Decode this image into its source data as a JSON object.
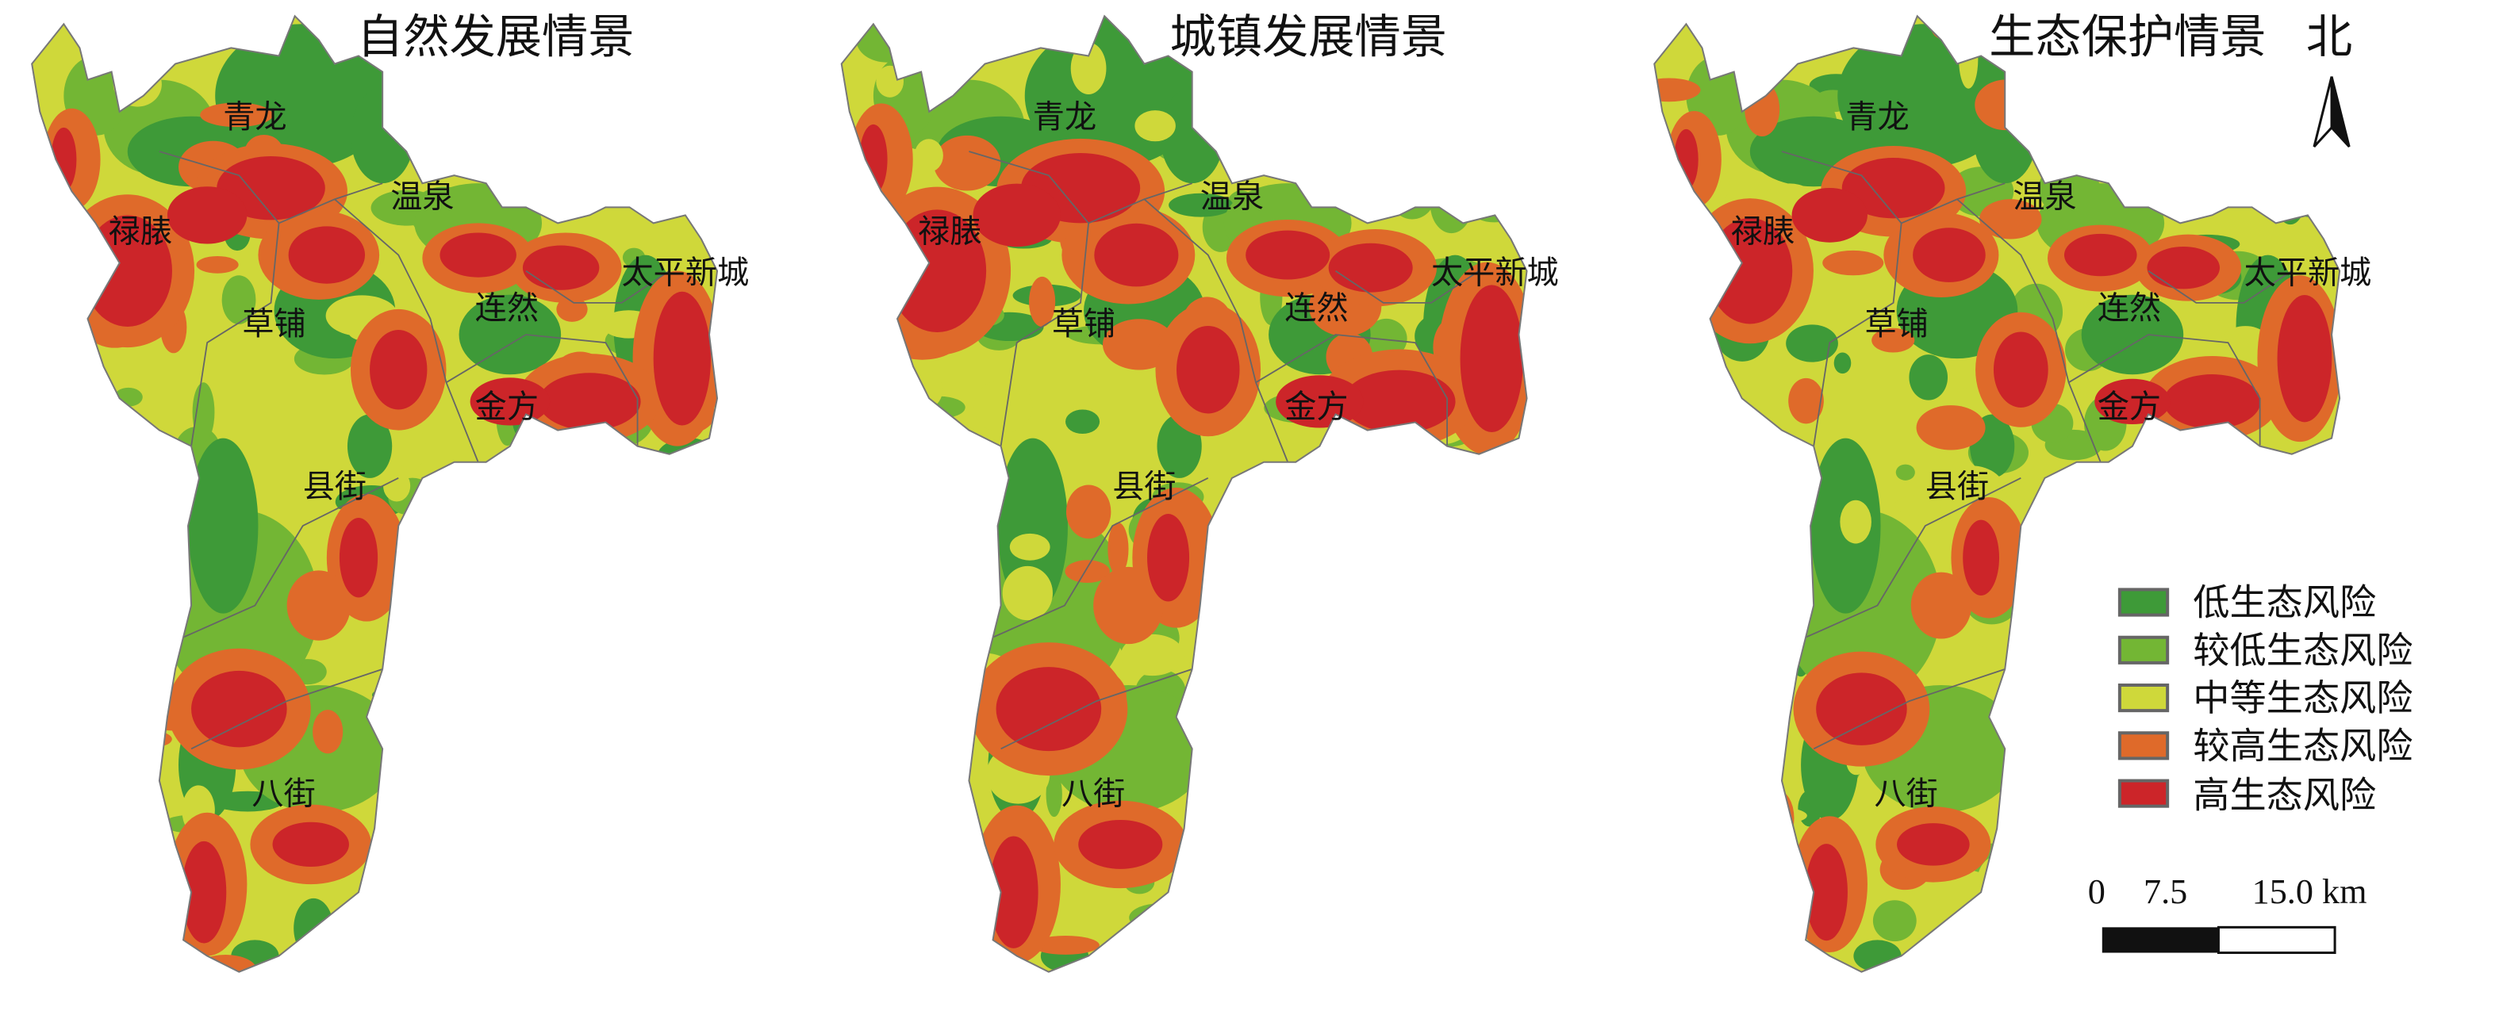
{
  "panels": [
    {
      "title": "自然发展情景"
    },
    {
      "title": "城镇发展情景"
    },
    {
      "title": "生态保护情景"
    }
  ],
  "towns": [
    "青龙",
    "禄脿",
    "温泉",
    "太平新城",
    "连然",
    "草铺",
    "金方",
    "县街",
    "八街"
  ],
  "north_label": "北",
  "legend": [
    {
      "label": "低生态风险",
      "color": "#3e9a38"
    },
    {
      "label": "较低生态风险",
      "color": "#73b634"
    },
    {
      "label": "中等生态风险",
      "color": "#cfd83a"
    },
    {
      "label": "较高生态风险",
      "color": "#df6a2a"
    },
    {
      "label": "高生态风险",
      "color": "#cc2529"
    }
  ],
  "scale_bar": {
    "ticks": [
      "0",
      "7.5",
      "15.0 km"
    ]
  }
}
